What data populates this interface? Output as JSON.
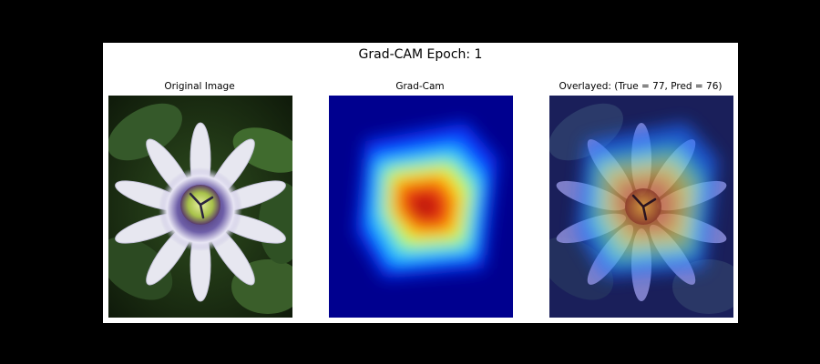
{
  "figure": {
    "suptitle": "Grad-CAM Epoch: 1"
  },
  "panels": [
    {
      "title": "Original Image",
      "content": "passion flower photograph"
    },
    {
      "title": "Grad-Cam",
      "content": "heatmap, jet colormap"
    },
    {
      "title": "Overlayed: (True = 77, Pred = 76)",
      "content": "photograph with heatmap overlay"
    }
  ],
  "colors": {
    "background": "#000000",
    "figure_bg": "#ffffff",
    "heatmap_low": "#00008f",
    "heatmap_high": "#d21400"
  }
}
